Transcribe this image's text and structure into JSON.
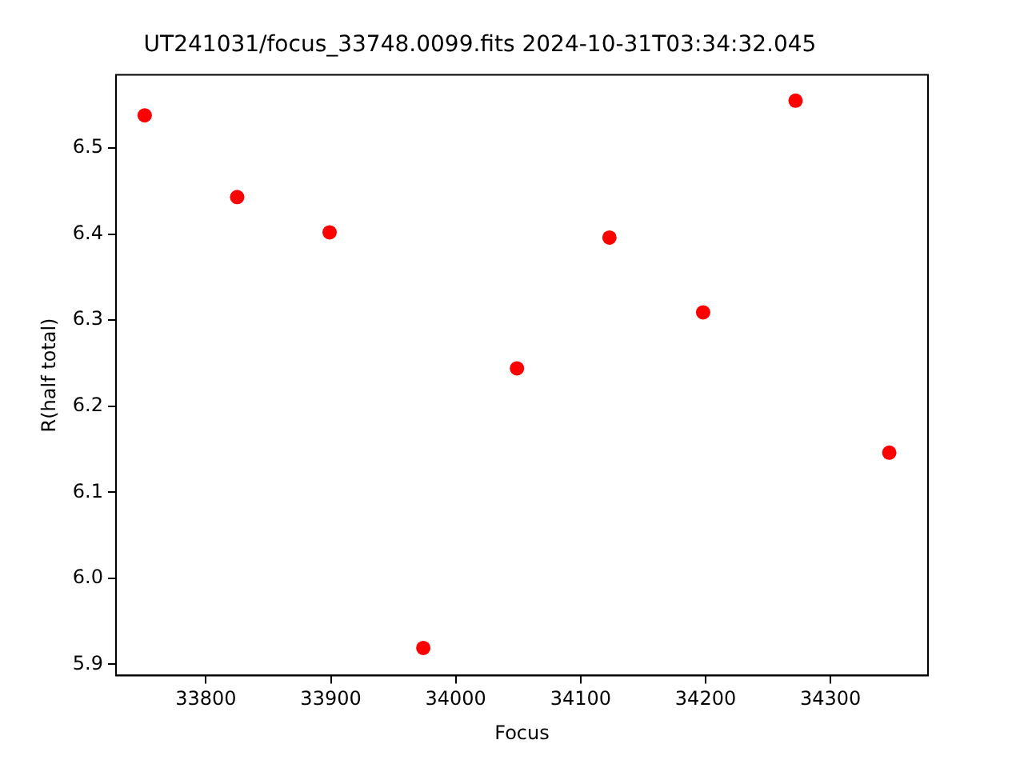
{
  "chart_data": {
    "type": "scatter",
    "title": "UT241031/focus_33748.0099.fits 2024-10-31T03:34:32.045",
    "xlabel": "Focus",
    "ylabel": "R(half total)",
    "x": [
      33751,
      33825,
      33899,
      33974,
      34049,
      34123,
      34198,
      34272,
      34347
    ],
    "series": [
      {
        "color": "#ff0000",
        "values": [
          6.538,
          6.443,
          6.402,
          5.919,
          6.244,
          6.396,
          6.309,
          6.555,
          6.146
        ]
      }
    ],
    "xlim": [
      33728,
      34378
    ],
    "xticks": [
      33800,
      33900,
      34000,
      34100,
      34200,
      34300
    ],
    "ylim": [
      5.887,
      6.585
    ],
    "yticks": [
      5.9,
      {
        "value": 6.0,
        "label": "6.0"
      },
      6.1,
      6.2,
      6.3,
      6.4,
      6.5
    ],
    "marker": "circle",
    "grid": false,
    "legend": false
  }
}
